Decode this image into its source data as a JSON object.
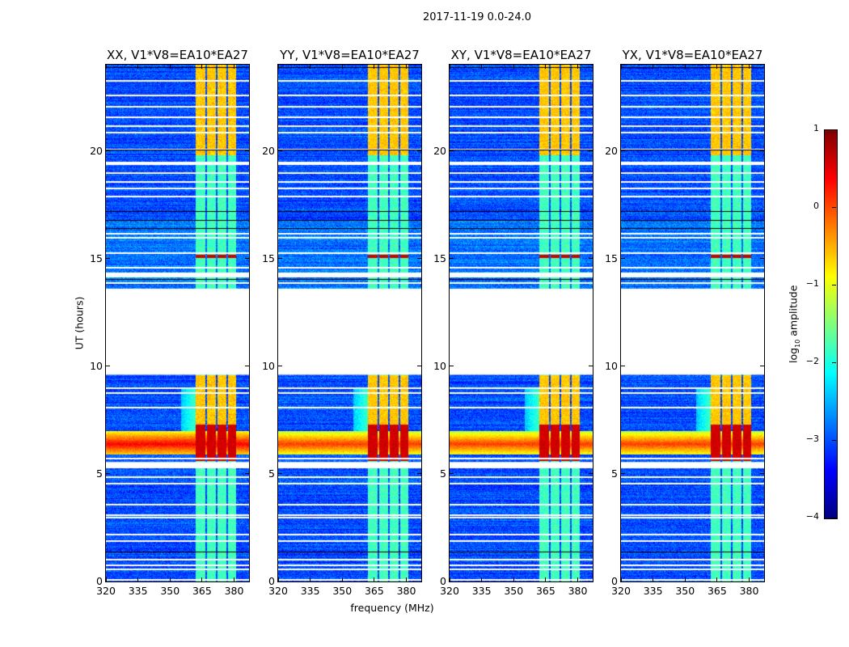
{
  "figure": {
    "suptitle": "2017-11-19 0.0-24.0",
    "xlabel": "frequency (MHz)",
    "ylabel": "UT (hours)",
    "colorbar_label_main": "log",
    "colorbar_label_sub": "10",
    "colorbar_label_rest": " amplitude"
  },
  "chart_data": {
    "type": "heatmap",
    "title": "2017-11-19 0.0-24.0",
    "xlabel": "frequency (MHz)",
    "ylabel": "UT (hours)",
    "xlim": [
      320,
      387
    ],
    "ylim": [
      0,
      24
    ],
    "xticks": [
      320,
      335,
      350,
      365,
      380
    ],
    "yticks": [
      0,
      5,
      10,
      15,
      20
    ],
    "colormap": "jet",
    "color_range": [
      -4,
      1
    ],
    "colorbar_ticks": [
      1,
      0,
      -1,
      -2,
      -3,
      -4
    ],
    "colorbar_tick_labels": [
      "1",
      "0",
      "−1",
      "−2",
      "−3",
      "−4"
    ],
    "colorbar_label": "log10 amplitude",
    "panels": [
      {
        "title": "XX, V1*V8=EA10*EA27",
        "show_ylabel": true,
        "rfi_strength": 1.0
      },
      {
        "title": "YY, V1*V8=EA10*EA27",
        "show_ylabel": false,
        "rfi_strength": 0.85
      },
      {
        "title": "XY, V1*V8=EA10*EA27",
        "show_ylabel": false,
        "rfi_strength": 0.8
      },
      {
        "title": "YX, V1*V8=EA10*EA27",
        "show_ylabel": false,
        "rfi_strength": 0.85
      }
    ],
    "background_level": -3.0,
    "rfi_bands_mhz": [
      [
        362,
        366.3
      ],
      [
        367,
        371.3
      ],
      [
        372,
        376.3
      ],
      [
        377,
        380.8
      ]
    ],
    "flagged_gap_hours": [
      9.6,
      13.6
    ],
    "flagged_rows_hours": [
      0.12,
      0.6,
      0.8,
      1.05,
      1.9,
      2.2,
      3.0,
      3.1,
      3.6,
      4.6,
      4.9,
      5.35,
      5.45,
      5.75,
      8.1,
      8.8,
      9.0,
      13.9,
      14.2,
      14.6,
      15.3,
      16.0,
      16.2,
      17.9,
      18.3,
      18.6,
      19.0,
      19.4,
      19.5,
      20.1,
      20.9,
      21.2,
      21.6,
      22.1,
      22.6,
      23.3
    ],
    "dark_rows_hours": [
      1.4,
      14.05,
      16.4,
      16.8,
      17.2,
      20.05,
      23.9
    ],
    "strong_rfi_hours": [
      5.9,
      7.0
    ],
    "band_active_hours": [
      [
        7.2,
        9.6
      ],
      [
        19.8,
        24
      ]
    ]
  }
}
